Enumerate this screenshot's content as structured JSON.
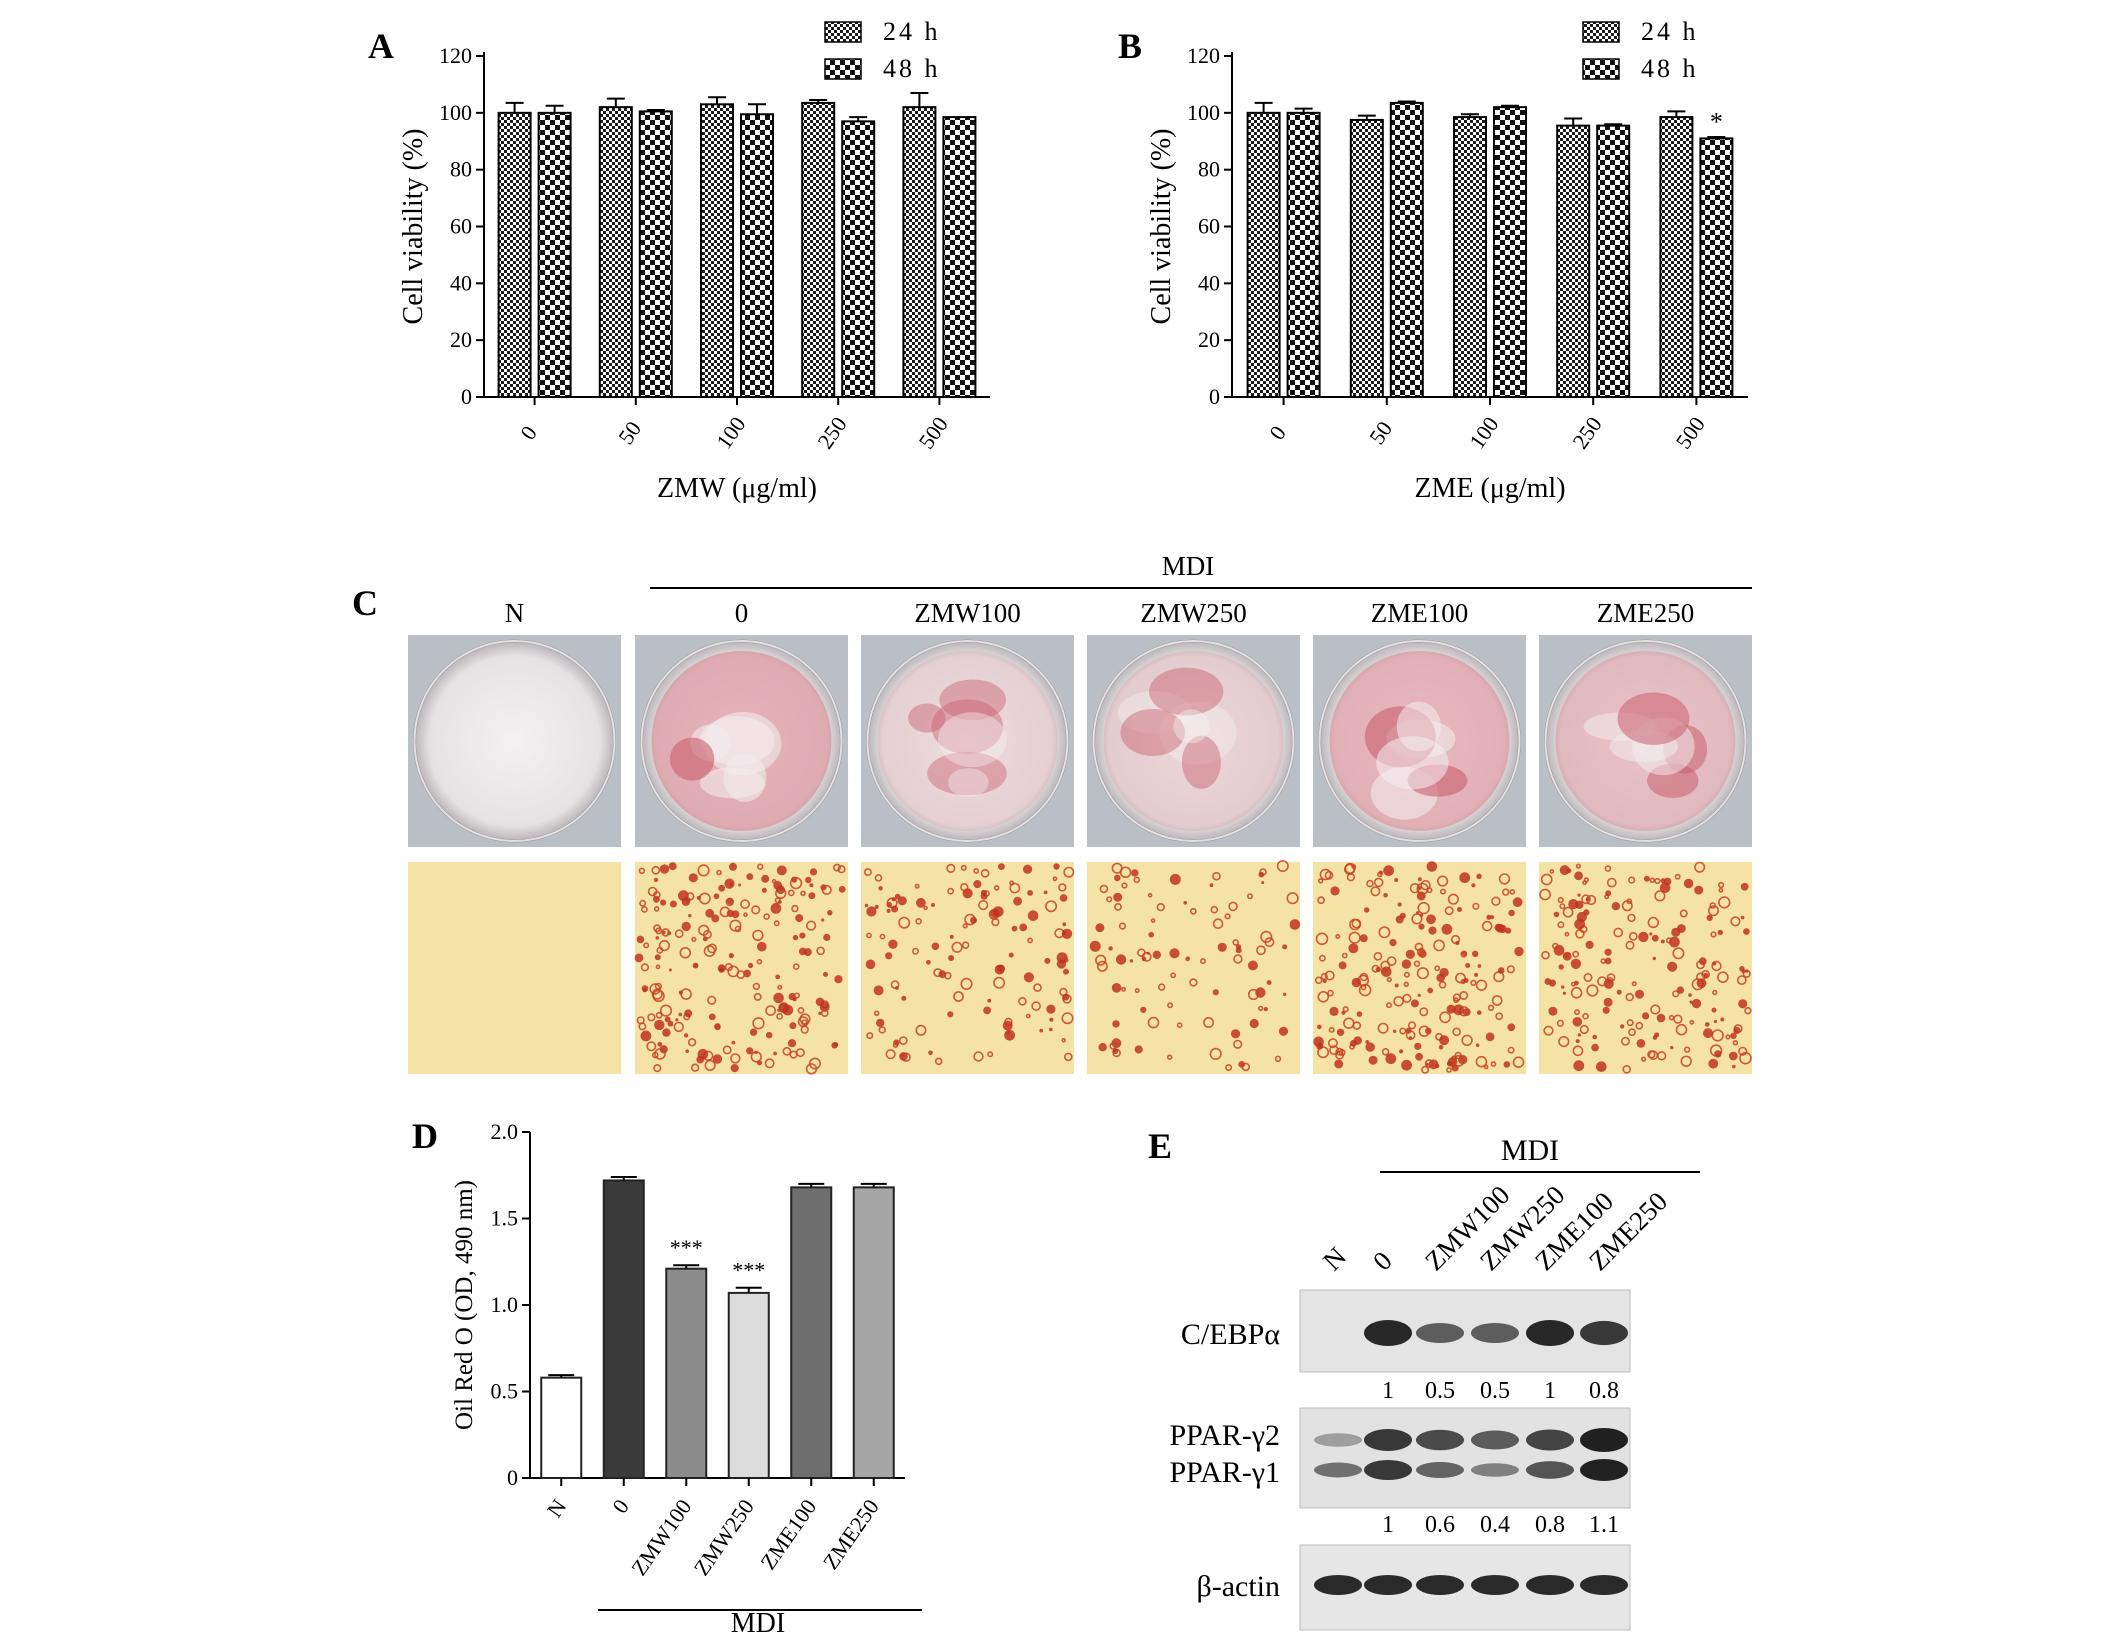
{
  "panels": {
    "A": {
      "letter": "A",
      "legend": [
        "24 h",
        "48 h"
      ],
      "star_labels": []
    },
    "B": {
      "letter": "B",
      "legend": [
        "24 h",
        "48 h"
      ]
    },
    "C": {
      "letter": "C",
      "group_label": "MDI",
      "columns": [
        "N",
        "0",
        "ZMW100",
        "ZMW250",
        "ZME100",
        "ZME250"
      ],
      "plate_stain": [
        0.0,
        0.75,
        0.25,
        0.3,
        0.7,
        0.55
      ],
      "micro_density": [
        0.0,
        0.9,
        0.55,
        0.4,
        0.9,
        0.8
      ]
    },
    "D": {
      "letter": "D",
      "group_label": "MDI"
    },
    "E": {
      "letter": "E",
      "group_label": "MDI",
      "lanes": [
        "N",
        "0",
        "ZMW100",
        "ZMW250",
        "ZME100",
        "ZME250"
      ],
      "rows": [
        {
          "name": "C/EBPα",
          "values": [
            "1",
            "0.5",
            "0.5",
            "1",
            "0.8"
          ]
        },
        {
          "name_top": "PPAR-γ2",
          "name_bottom": "PPAR-γ1",
          "values": [
            "1",
            "0.6",
            "0.4",
            "0.8",
            "1.1"
          ]
        },
        {
          "name": "β-actin",
          "values": []
        }
      ]
    }
  },
  "chart_data": [
    {
      "panel": "A",
      "type": "bar",
      "categories": [
        "0",
        "50",
        "100",
        "250",
        "500"
      ],
      "series": [
        {
          "name": "24 h",
          "values": [
            100,
            102,
            103,
            103.5,
            102
          ],
          "errors": [
            3.5,
            3,
            2.5,
            1,
            5
          ],
          "pattern": "fine-check"
        },
        {
          "name": "48 h",
          "values": [
            100,
            100.5,
            99.5,
            97,
            98.5
          ],
          "errors": [
            2.5,
            0.5,
            3.5,
            1.5,
            0
          ],
          "pattern": "coarse-check"
        }
      ],
      "xlabel": "ZMW (μg/ml)",
      "ylabel": "Cell viability (%)",
      "ylim": [
        0,
        120
      ],
      "yticks": [
        "0",
        "20",
        "40",
        "60",
        "80",
        "100",
        "120"
      ],
      "legend_position": "top-right"
    },
    {
      "panel": "B",
      "type": "bar",
      "categories": [
        "0",
        "50",
        "100",
        "250",
        "500"
      ],
      "series": [
        {
          "name": "24 h",
          "values": [
            100,
            97.5,
            98.5,
            95.5,
            98.5
          ],
          "errors": [
            3.5,
            1.5,
            1,
            2.5,
            2
          ],
          "pattern": "fine-check"
        },
        {
          "name": "48 h",
          "values": [
            100,
            103.5,
            102,
            95.5,
            91
          ],
          "errors": [
            1.5,
            0.5,
            0.5,
            0.5,
            0.5
          ],
          "pattern": "coarse-check"
        }
      ],
      "annotations": [
        {
          "series": 1,
          "index": 4,
          "text": "*"
        }
      ],
      "xlabel": "ZME (μg/ml)",
      "ylabel": "Cell viability (%)",
      "ylim": [
        0,
        120
      ],
      "yticks": [
        "0",
        "20",
        "40",
        "60",
        "80",
        "100",
        "120"
      ],
      "legend_position": "top-right"
    },
    {
      "panel": "D",
      "type": "bar",
      "categories": [
        "N",
        "0",
        "ZMW100",
        "ZMW250",
        "ZME100",
        "ZME250"
      ],
      "values": [
        0.58,
        1.72,
        1.21,
        1.07,
        1.68,
        1.68
      ],
      "errors": [
        0.015,
        0.02,
        0.02,
        0.03,
        0.02,
        0.02
      ],
      "bar_colors": [
        "#ffffff",
        "#3a3a3a",
        "#8c8c8c",
        "#dcdcdc",
        "#6e6e6e",
        "#a6a6a6"
      ],
      "annotations": [
        {
          "index": 2,
          "text": "***"
        },
        {
          "index": 3,
          "text": "***"
        }
      ],
      "ylabel": "Oil Red O (OD, 490 nm)",
      "ylim": [
        0,
        2.0
      ],
      "yticks": [
        "0",
        "0.5",
        "1.0",
        "1.5",
        "2.0"
      ]
    }
  ]
}
